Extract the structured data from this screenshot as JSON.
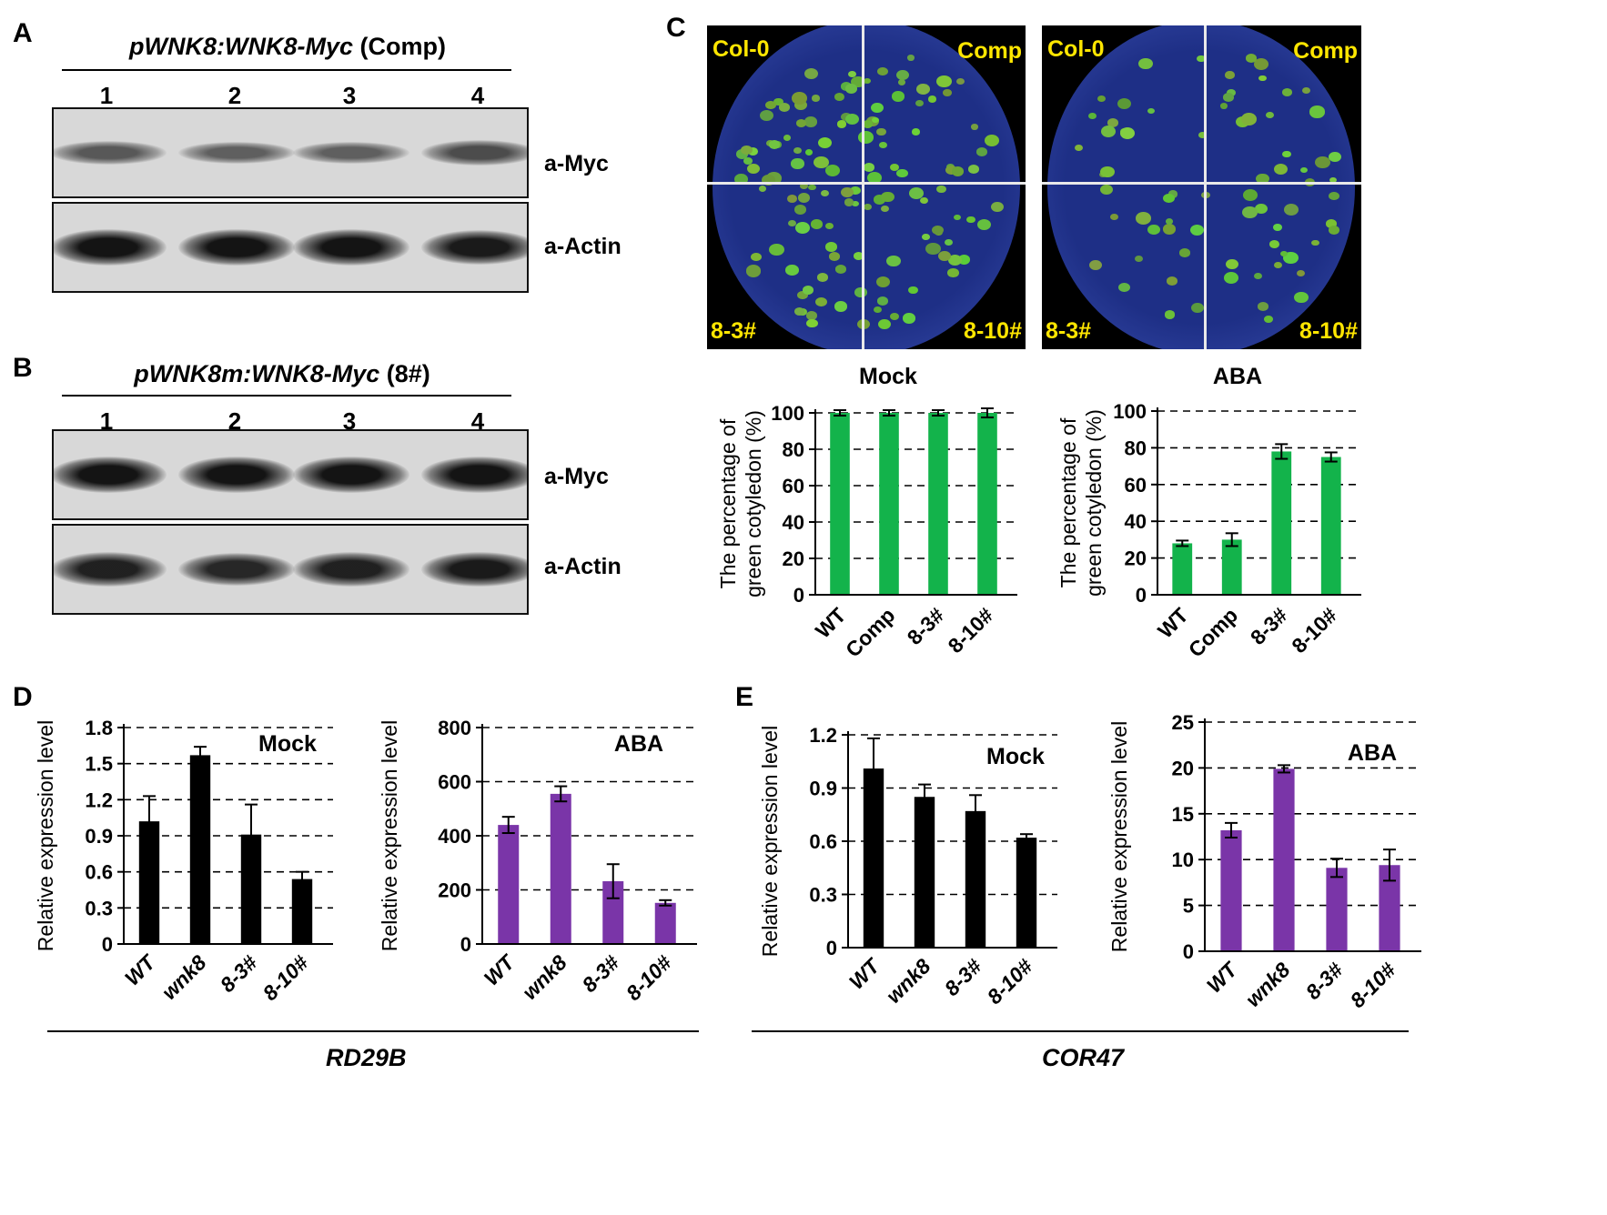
{
  "panel_labels": {
    "A": "A",
    "B": "B",
    "C": "C",
    "D": "D",
    "E": "E"
  },
  "blot_a": {
    "header_construct": "pWNK8:WNK8-Myc",
    "header_suffix": "(Comp)",
    "lanes": [
      "1",
      "2",
      "3",
      "4"
    ],
    "antibody_top": "a-Myc",
    "antibody_bottom": "a-Actin",
    "myc_intensity": [
      0.45,
      0.4,
      0.4,
      0.55
    ],
    "actin_intensity": [
      1.0,
      1.0,
      1.0,
      0.95
    ]
  },
  "blot_b": {
    "header_construct": "pWNK8m:WNK8-Myc",
    "header_suffix": "(8#)",
    "lanes": [
      "1",
      "2",
      "3",
      "4"
    ],
    "antibody_top": "a-Myc",
    "antibody_bottom": "a-Actin",
    "myc_intensity": [
      1.0,
      1.0,
      1.0,
      1.0
    ],
    "actin_intensity": [
      0.9,
      0.85,
      0.9,
      0.95
    ]
  },
  "plates": [
    {
      "quadrants": [
        "Col-0",
        "Comp",
        "8-3#",
        "8-10#"
      ],
      "condition": "mock"
    },
    {
      "quadrants": [
        "Col-0",
        "Comp",
        "8-3#",
        "8-10#"
      ],
      "condition": "aba"
    }
  ],
  "gene_labels": {
    "D": "RD29B",
    "E": "COR47"
  },
  "colors": {
    "green": "#13b34b",
    "purple": "#7a35a8",
    "black": "#000000"
  },
  "chart_data": [
    {
      "id": "c-mock",
      "type": "bar",
      "title": "Mock",
      "ylabel": "The percentage of green cotyledon (%)",
      "categories": [
        "WT",
        "Comp",
        "8-3#",
        "8-10#"
      ],
      "values": [
        100,
        100,
        100,
        100
      ],
      "errors": [
        1.5,
        1.5,
        1.5,
        2.5
      ],
      "ylim": [
        0,
        100
      ],
      "yticks": [
        "0",
        "20",
        "40",
        "60",
        "80",
        "100"
      ],
      "color": "#13b34b",
      "italic_categories": false
    },
    {
      "id": "c-aba",
      "type": "bar",
      "title": "ABA",
      "ylabel": "The percentage of green cotyledon (%)",
      "categories": [
        "WT",
        "Comp",
        "8-3#",
        "8-10#"
      ],
      "values": [
        28,
        30,
        78,
        75
      ],
      "errors": [
        1.5,
        3.5,
        4,
        2.5
      ],
      "ylim": [
        0,
        100
      ],
      "yticks": [
        "0",
        "20",
        "40",
        "60",
        "80",
        "100"
      ],
      "color": "#13b34b",
      "italic_categories": false
    },
    {
      "id": "d-mock",
      "type": "bar",
      "title": "Mock",
      "ylabel": "Relative expression level",
      "categories": [
        "WT",
        "wnk8",
        "8-3#",
        "8-10#"
      ],
      "values": [
        1.02,
        1.57,
        0.91,
        0.54
      ],
      "errors": [
        0.21,
        0.07,
        0.25,
        0.06
      ],
      "ylim": [
        0,
        1.8
      ],
      "yticks": [
        "0",
        "0.3",
        "0.6",
        "0.9",
        "1.2",
        "1.5",
        "1.8"
      ],
      "color": "#000000",
      "italic_categories": true
    },
    {
      "id": "d-aba",
      "type": "bar",
      "title": "ABA",
      "ylabel": "Relative expression level",
      "categories": [
        "WT",
        "wnk8",
        "8-3#",
        "8-10#"
      ],
      "values": [
        440,
        555,
        232,
        152
      ],
      "errors": [
        30,
        28,
        63,
        10
      ],
      "ylim": [
        0,
        800
      ],
      "yticks": [
        "0",
        "200",
        "400",
        "600",
        "800"
      ],
      "color": "#7a35a8",
      "italic_categories": true
    },
    {
      "id": "e-mock",
      "type": "bar",
      "title": "Mock",
      "ylabel": "Relative expression level",
      "categories": [
        "WT",
        "wnk8",
        "8-3#",
        "8-10#"
      ],
      "values": [
        1.01,
        0.85,
        0.77,
        0.62
      ],
      "errors": [
        0.17,
        0.07,
        0.09,
        0.02
      ],
      "ylim": [
        0,
        1.2
      ],
      "yticks": [
        "0",
        "0.3",
        "0.6",
        "0.9",
        "1.2"
      ],
      "color": "#000000",
      "italic_categories": true
    },
    {
      "id": "e-aba",
      "type": "bar",
      "title": "ABA",
      "ylabel": "Relative expression level",
      "categories": [
        "WT",
        "wnk8",
        "8-3#",
        "8-10#"
      ],
      "values": [
        13.2,
        19.9,
        9.1,
        9.4
      ],
      "errors": [
        0.8,
        0.4,
        1.0,
        1.7
      ],
      "ylim": [
        0,
        25
      ],
      "yticks": [
        "0",
        "5",
        "10",
        "15",
        "20",
        "25"
      ],
      "color": "#7a35a8",
      "italic_categories": true
    }
  ]
}
